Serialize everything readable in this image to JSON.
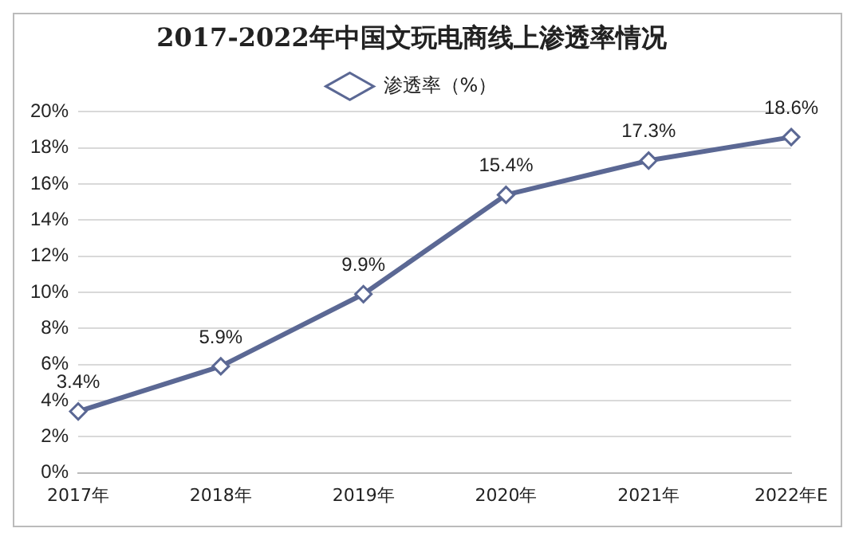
{
  "chart_data": {
    "type": "line",
    "title": "2017-2022年中国文玩电商线上渗透率情况",
    "categories": [
      "2017年",
      "2018年",
      "2019年",
      "2020年",
      "2021年",
      "2022年E"
    ],
    "series": [
      {
        "name": "渗透率（%）",
        "color": "#5b6894",
        "values": [
          3.4,
          5.9,
          9.9,
          15.4,
          17.3,
          18.6
        ],
        "value_labels": [
          "3.4%",
          "5.9%",
          "9.9%",
          "15.4%",
          "17.3%",
          "18.6%"
        ]
      }
    ],
    "ylim": [
      0,
      20
    ],
    "yticks": [
      {
        "value": 0,
        "label": "0%"
      },
      {
        "value": 2,
        "label": "2%"
      },
      {
        "value": 4,
        "label": "4%"
      },
      {
        "value": 6,
        "label": "6%"
      },
      {
        "value": 8,
        "label": "8%"
      },
      {
        "value": 10,
        "label": "10%"
      },
      {
        "value": 12,
        "label": "12%"
      },
      {
        "value": 14,
        "label": "14%"
      },
      {
        "value": 16,
        "label": "16%"
      },
      {
        "value": 18,
        "label": "18%"
      },
      {
        "value": 20,
        "label": "20%"
      }
    ],
    "grid": "y",
    "legend": "top",
    "marker": "diamond",
    "line_style": "solid"
  }
}
